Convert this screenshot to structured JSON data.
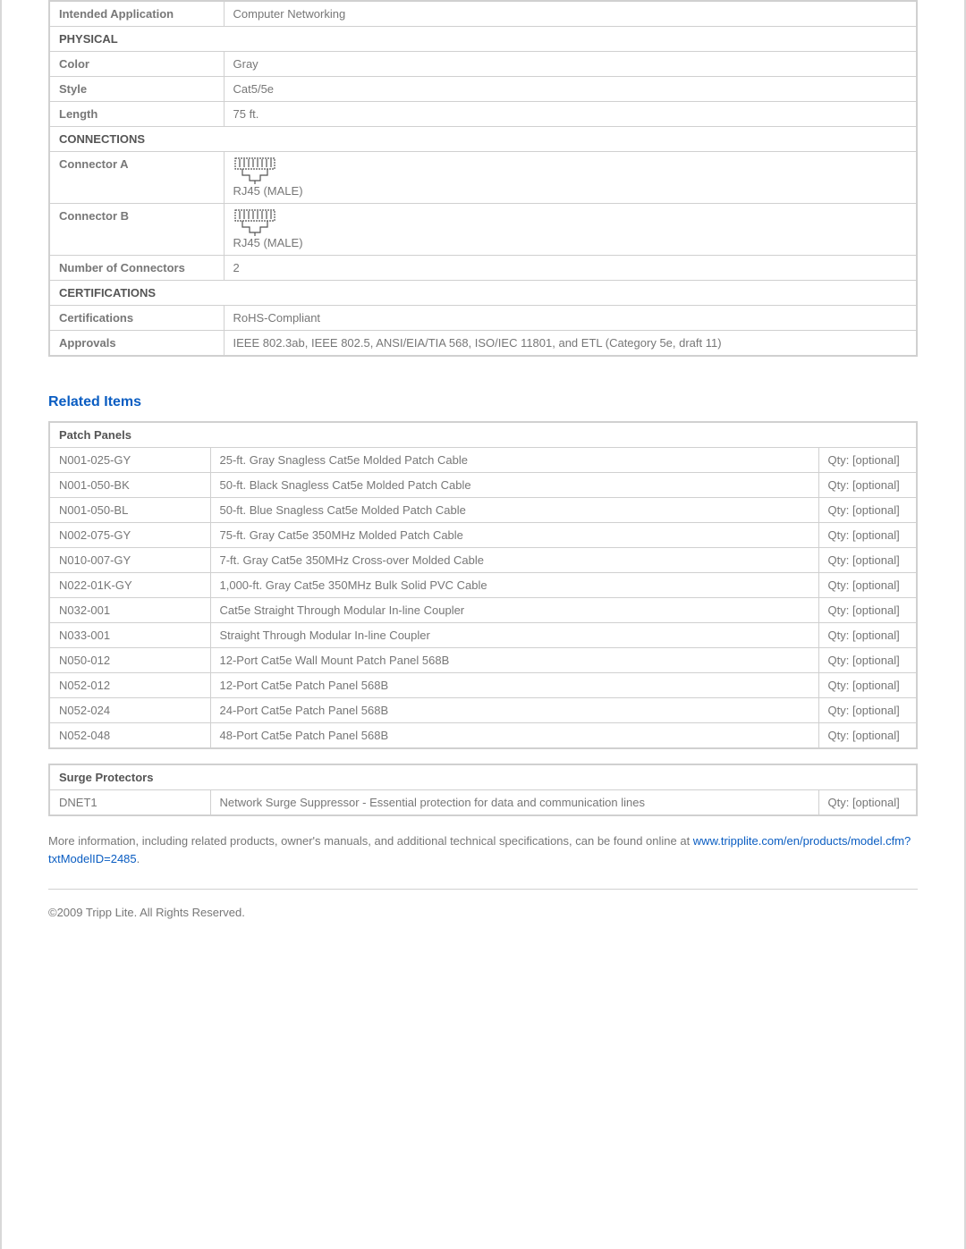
{
  "specs": {
    "intended_application": {
      "label": "Intended Application",
      "value": "Computer Networking"
    },
    "sections": [
      {
        "header": "PHYSICAL",
        "rows": [
          {
            "label": "Color",
            "value": "Gray"
          },
          {
            "label": "Style",
            "value": "Cat5/5e"
          },
          {
            "label": "Length",
            "value": "75 ft."
          }
        ]
      },
      {
        "header": "CONNECTIONS",
        "rows": [
          {
            "label": "Connector A",
            "connector": "RJ45 (MALE)"
          },
          {
            "label": "Connector B",
            "connector": "RJ45 (MALE)"
          },
          {
            "label": "Number of Connectors",
            "value": "2"
          }
        ]
      },
      {
        "header": "CERTIFICATIONS",
        "rows": [
          {
            "label": "Certifications",
            "value": "RoHS-Compliant"
          },
          {
            "label": "Approvals",
            "value": "IEEE 802.3ab, IEEE 802.5, ANSI/EIA/TIA 568, ISO/IEC 11801, and ETL (Category 5e, draft 11)"
          }
        ]
      }
    ]
  },
  "related": {
    "title": "Related Items",
    "groups": [
      {
        "header": "Patch Panels",
        "items": [
          {
            "sku": "N001-025-GY",
            "desc": "25-ft. Gray Snagless Cat5e Molded Patch Cable",
            "qty": "Qty: [optional]"
          },
          {
            "sku": "N001-050-BK",
            "desc": "50-ft. Black Snagless Cat5e Molded Patch Cable",
            "qty": "Qty: [optional]"
          },
          {
            "sku": "N001-050-BL",
            "desc": "50-ft. Blue Snagless Cat5e Molded Patch Cable",
            "qty": "Qty: [optional]"
          },
          {
            "sku": "N002-075-GY",
            "desc": "75-ft. Gray Cat5e 350MHz Molded Patch Cable",
            "qty": "Qty: [optional]"
          },
          {
            "sku": "N010-007-GY",
            "desc": "7-ft. Gray Cat5e 350MHz Cross-over Molded Cable",
            "qty": "Qty: [optional]"
          },
          {
            "sku": "N022-01K-GY",
            "desc": "1,000-ft. Gray Cat5e 350MHz Bulk Solid PVC Cable",
            "qty": "Qty: [optional]"
          },
          {
            "sku": "N032-001",
            "desc": "Cat5e Straight Through Modular In-line Coupler",
            "qty": "Qty: [optional]"
          },
          {
            "sku": "N033-001",
            "desc": "Straight Through Modular In-line Coupler",
            "qty": "Qty: [optional]"
          },
          {
            "sku": "N050-012",
            "desc": "12-Port Cat5e Wall Mount Patch Panel 568B",
            "qty": "Qty: [optional]"
          },
          {
            "sku": "N052-012",
            "desc": "12-Port Cat5e Patch Panel 568B",
            "qty": "Qty: [optional]"
          },
          {
            "sku": "N052-024",
            "desc": "24-Port Cat5e Patch Panel 568B",
            "qty": "Qty: [optional]"
          },
          {
            "sku": "N052-048",
            "desc": "48-Port Cat5e Patch Panel 568B",
            "qty": "Qty: [optional]"
          }
        ]
      },
      {
        "header": "Surge Protectors",
        "items": [
          {
            "sku": "DNET1",
            "desc": "Network Surge Suppressor - Essential protection for data and communication lines",
            "qty": "Qty: [optional]"
          }
        ]
      }
    ]
  },
  "footer": {
    "line1": "More information, including related products, owner's manuals, and additional technical specifications, can be found online at ",
    "link_text": "www.tripplite.com/en/products/model.cfm?txtModelID=2485",
    "period": ".",
    "copyright": "©2009 Tripp Lite.  All Rights Reserved."
  },
  "colors": {
    "border": "#d0d0d0",
    "text": "#777777",
    "heading": "#555555",
    "link": "#0a5dc2"
  }
}
